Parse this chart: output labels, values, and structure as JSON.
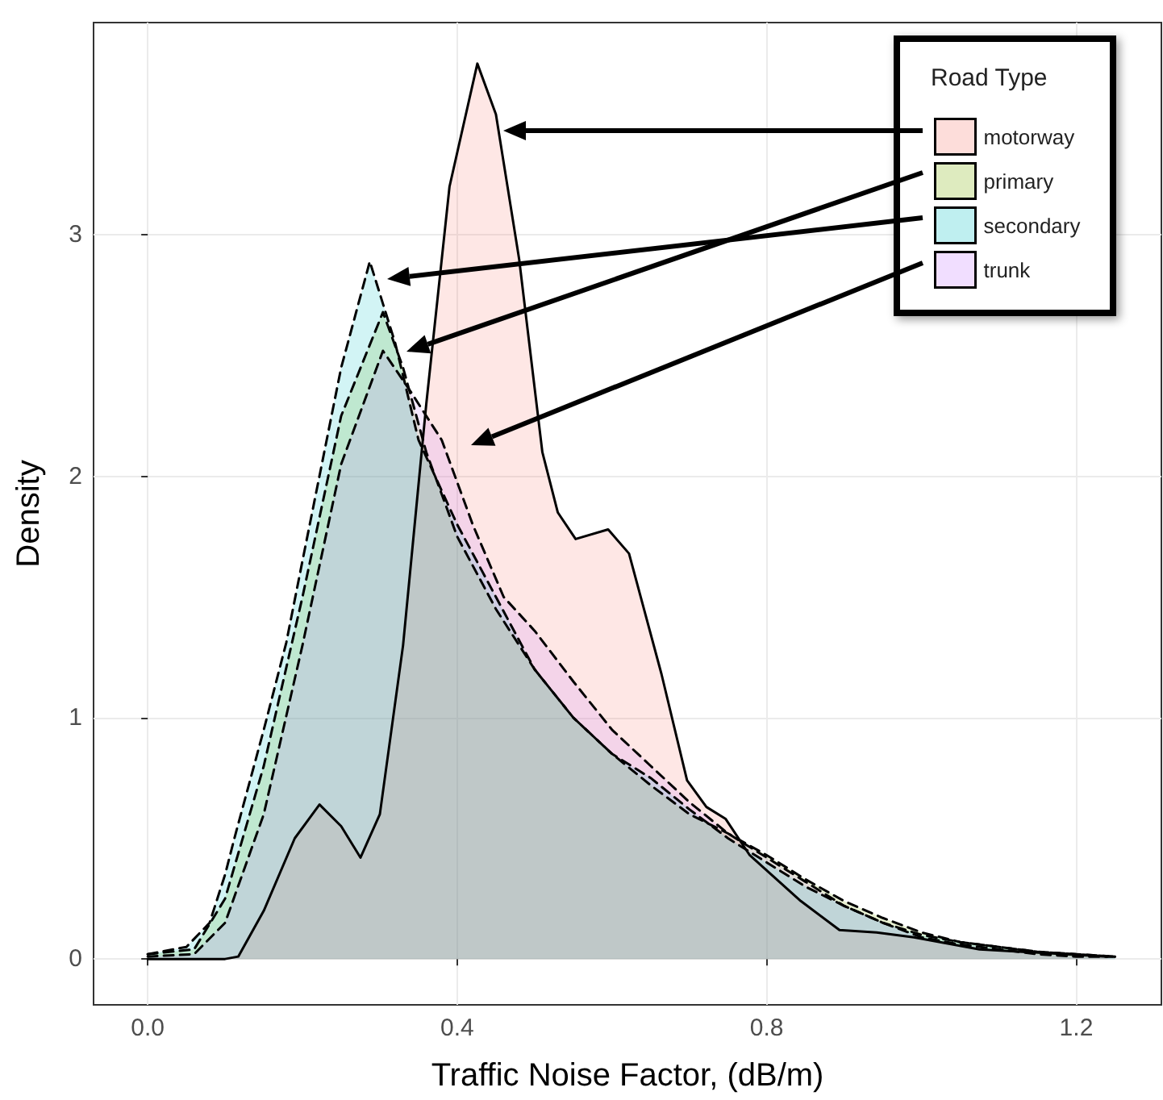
{
  "chart_data": {
    "type": "area",
    "xlabel": "Traffic Noise Factor, (dB/m)",
    "ylabel": "Density",
    "legend_title": "Road Type",
    "legend": "top right",
    "grid": true,
    "marker": "none",
    "xlim": [
      -0.07,
      1.31
    ],
    "ylim": [
      -0.19,
      3.88
    ],
    "xticks": [
      {
        "value": 0,
        "label": "0.0"
      },
      {
        "value": 0.4,
        "label": "0.4"
      },
      {
        "value": 0.8,
        "label": "0.8"
      },
      {
        "value": 1.2,
        "label": "1.2"
      }
    ],
    "yticks": [
      0,
      1,
      2,
      3
    ],
    "series": [
      {
        "name": "motorway",
        "color": "#f8766d",
        "line_style": "solid",
        "x": [
          0,
          0.1,
          0.117,
          0.15,
          0.19,
          0.222,
          0.25,
          0.275,
          0.3,
          0.33,
          0.36,
          0.39,
          0.426,
          0.45,
          0.48,
          0.51,
          0.53,
          0.553,
          0.595,
          0.622,
          0.664,
          0.697,
          0.722,
          0.747,
          0.778,
          0.844,
          0.894,
          0.942,
          0.99,
          1.075,
          1.24
        ],
        "values": [
          0,
          0,
          0.01,
          0.2,
          0.5,
          0.64,
          0.55,
          0.42,
          0.6,
          1.3,
          2.3,
          3.2,
          3.71,
          3.5,
          2.9,
          2.1,
          1.85,
          1.74,
          1.78,
          1.68,
          1.18,
          0.74,
          0.63,
          0.58,
          0.43,
          0.24,
          0.12,
          0.11,
          0.09,
          0.04,
          0.01
        ]
      },
      {
        "name": "primary",
        "color": "#7cae00",
        "line_style": "dashed",
        "x": [
          0,
          0.06,
          0.1,
          0.15,
          0.2,
          0.25,
          0.304,
          0.33,
          0.36,
          0.4,
          0.45,
          0.5,
          0.55,
          0.6,
          0.65,
          0.7,
          0.75,
          0.8,
          0.85,
          0.9,
          0.95,
          1.0,
          1.05,
          1.1,
          1.15,
          1.2,
          1.25
        ],
        "values": [
          0.02,
          0.04,
          0.25,
          0.8,
          1.5,
          2.25,
          2.68,
          2.45,
          2.1,
          1.75,
          1.45,
          1.2,
          1.0,
          0.85,
          0.72,
          0.6,
          0.52,
          0.43,
          0.33,
          0.24,
          0.17,
          0.11,
          0.07,
          0.05,
          0.03,
          0.02,
          0.01
        ]
      },
      {
        "name": "secondary",
        "color": "#00bfc4",
        "line_style": "dashed",
        "x": [
          0,
          0.05,
          0.08,
          0.1,
          0.112,
          0.15,
          0.179,
          0.2,
          0.25,
          0.287,
          0.32,
          0.35,
          0.4,
          0.45,
          0.5,
          0.55,
          0.6,
          0.65,
          0.7,
          0.75,
          0.8,
          0.85,
          0.9,
          0.95,
          1.0,
          1.05,
          1.1,
          1.15,
          1.2,
          1.25
        ],
        "values": [
          0.02,
          0.05,
          0.15,
          0.35,
          0.5,
          0.95,
          1.31,
          1.65,
          2.45,
          2.89,
          2.55,
          2.15,
          1.8,
          1.5,
          1.2,
          1.0,
          0.85,
          0.75,
          0.62,
          0.5,
          0.4,
          0.3,
          0.22,
          0.15,
          0.1,
          0.07,
          0.05,
          0.03,
          0.02,
          0.01
        ]
      },
      {
        "name": "trunk",
        "color": "#c77cff",
        "line_style": "dashed",
        "x": [
          0,
          0.06,
          0.1,
          0.15,
          0.2,
          0.25,
          0.304,
          0.34,
          0.38,
          0.42,
          0.46,
          0.5,
          0.55,
          0.6,
          0.65,
          0.7,
          0.75,
          0.8,
          0.85,
          0.9,
          0.95,
          1.0,
          1.05,
          1.1,
          1.15,
          1.2,
          1.25
        ],
        "values": [
          0.01,
          0.02,
          0.15,
          0.6,
          1.3,
          2.05,
          2.52,
          2.35,
          2.15,
          1.8,
          1.5,
          1.36,
          1.15,
          0.95,
          0.8,
          0.65,
          0.52,
          0.42,
          0.32,
          0.22,
          0.15,
          0.09,
          0.06,
          0.04,
          0.02,
          0.01,
          0.01
        ]
      }
    ]
  }
}
